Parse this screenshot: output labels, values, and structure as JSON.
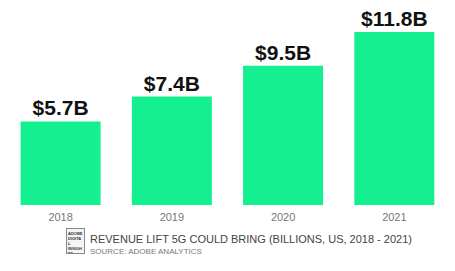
{
  "chart_data": {
    "type": "bar",
    "title": "REVENUE LIFT 5G COULD BRING (BILLIONS, US, 2018 - 2021)",
    "subtitle": "SOURCE: ADOBE ANALYTICS",
    "logo_text": "ADOBE DIGITAL INSIGHTS",
    "categories": [
      "2018",
      "2019",
      "2020",
      "2021"
    ],
    "values": [
      5.7,
      7.4,
      9.5,
      11.8
    ],
    "value_labels": [
      "$5.7B",
      "$7.4B",
      "$9.5B",
      "$11.8B"
    ],
    "data_labels": true,
    "color": "#14f090",
    "ylim": [
      0,
      11.8
    ],
    "grid": false,
    "tick_labels": "x"
  }
}
